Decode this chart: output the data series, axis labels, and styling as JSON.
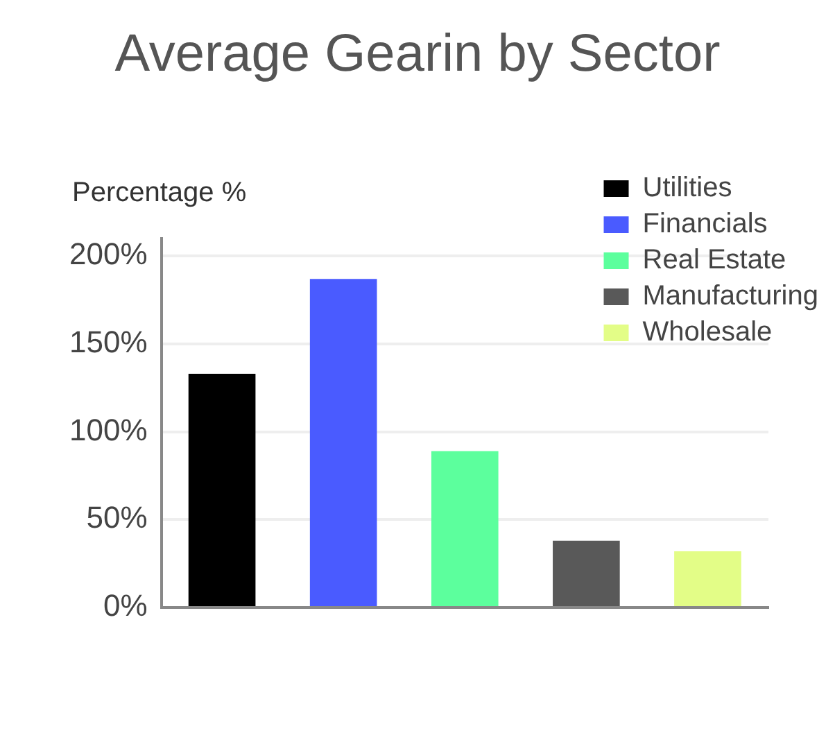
{
  "chart_data": {
    "type": "bar",
    "title": "Average Gearin by Sector",
    "ylabel": "Percentage %",
    "categories": [
      null,
      null,
      null,
      null,
      null
    ],
    "series": [
      {
        "name": "Utilities",
        "color": "#000000",
        "values": [
          133,
          null,
          null,
          null,
          null
        ]
      },
      {
        "name": "Financials",
        "color": "#4a5bff",
        "values": [
          null,
          187,
          null,
          null,
          null
        ]
      },
      {
        "name": "Real Estate",
        "color": "#5cff9d",
        "values": [
          null,
          null,
          89,
          null,
          null
        ]
      },
      {
        "name": "Manufacturing",
        "color": "#595959",
        "values": [
          null,
          null,
          null,
          38,
          null
        ]
      },
      {
        "name": "Wholesale",
        "color": "#e3fd87",
        "values": [
          null,
          null,
          null,
          null,
          32
        ]
      }
    ],
    "ylim": [
      0,
      210
    ],
    "yticks": [
      {
        "value": 0,
        "label": "0%"
      },
      {
        "value": 50,
        "label": "50%"
      },
      {
        "value": 100,
        "label": "100%"
      },
      {
        "value": 150,
        "label": "150%"
      },
      {
        "value": 200,
        "label": "200%"
      }
    ],
    "grid": "y",
    "legend": "top right",
    "tick_labels": "y"
  }
}
